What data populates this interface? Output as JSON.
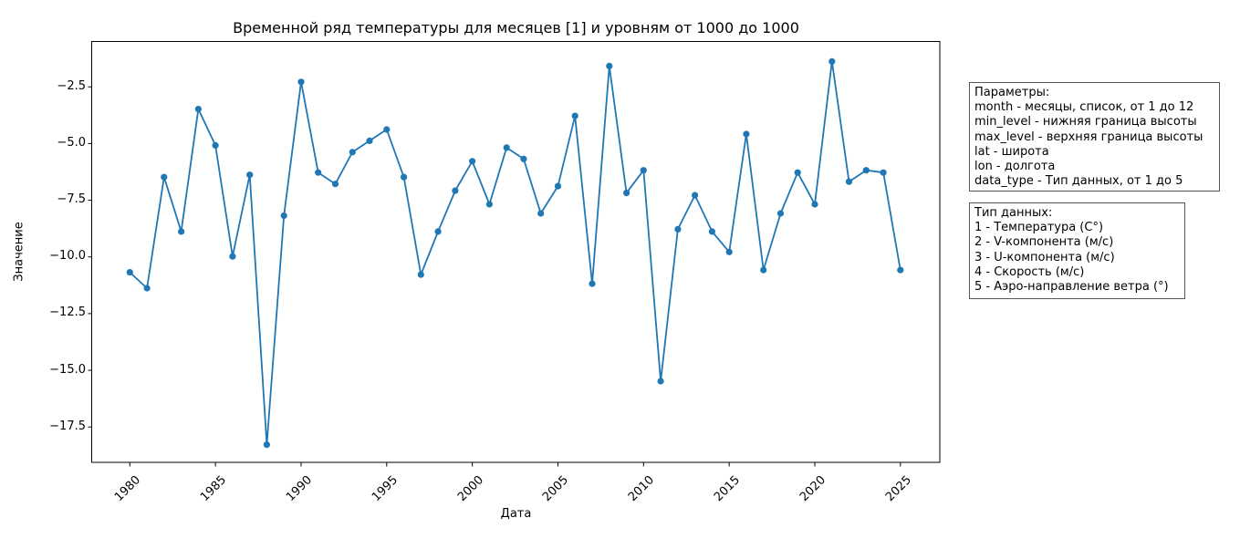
{
  "chart_data": {
    "type": "line",
    "title": "Временной ряд температуры для месяцев [1] и уровням от 1000 до 1000",
    "xlabel": "Дата",
    "ylabel": "Значение",
    "x": [
      1980,
      1981,
      1982,
      1983,
      1984,
      1985,
      1986,
      1987,
      1988,
      1989,
      1990,
      1991,
      1992,
      1993,
      1994,
      1995,
      1996,
      1997,
      1998,
      1999,
      2000,
      2001,
      2002,
      2003,
      2004,
      2005,
      2006,
      2007,
      2008,
      2009,
      2010,
      2011,
      2012,
      2013,
      2014,
      2015,
      2016,
      2017,
      2018,
      2019,
      2020,
      2021,
      2022,
      2023,
      2024,
      2025
    ],
    "series": [
      {
        "name": "температура",
        "color": "#1f77b4",
        "marker": "o",
        "values": [
          -10.7,
          -11.4,
          -6.5,
          -8.9,
          -3.5,
          -5.1,
          -10.0,
          -6.4,
          -18.3,
          -8.2,
          -2.3,
          -6.3,
          -6.8,
          -5.4,
          -4.9,
          -4.4,
          -6.5,
          -10.8,
          -8.9,
          -7.1,
          -5.8,
          -7.7,
          -5.2,
          -5.7,
          -8.1,
          -6.9,
          -3.8,
          -11.2,
          -1.6,
          -7.2,
          -6.2,
          -15.5,
          -8.8,
          -7.3,
          -8.9,
          -9.8,
          -4.6,
          -10.6,
          -8.1,
          -6.3,
          -7.7,
          -1.4,
          -6.7,
          -6.2,
          -6.3,
          -10.6
        ]
      }
    ],
    "xlim": [
      1977.8,
      2027.3
    ],
    "ylim": [
      -19.08,
      -0.54
    ],
    "x_ticks": {
      "values": [
        1980,
        1985,
        1990,
        1995,
        2000,
        2005,
        2010,
        2015,
        2020,
        2025
      ],
      "labels": [
        "1980",
        "1985",
        "1990",
        "1995",
        "2000",
        "2005",
        "2010",
        "2015",
        "2020",
        "2025"
      ]
    },
    "y_ticks": {
      "values": [
        -2.5,
        -5.0,
        -7.5,
        -10.0,
        -12.5,
        -15.0,
        -17.5
      ],
      "labels": [
        "−2.5",
        "−5.0",
        "−7.5",
        "−10.0",
        "−12.5",
        "−15.0",
        "−17.5"
      ]
    },
    "grid": false,
    "legend": "none",
    "x_tick_rotation": 45,
    "spine_color": "#000000",
    "background": "#ffffff"
  },
  "boxes": {
    "params": {
      "lines": [
        "Параметры:",
        "month - месяцы, список, от 1 до 12",
        "min_level - нижняя граница высоты",
        "max_level - верхняя граница высоты",
        "lat - широта",
        "lon - долгота",
        "data_type - Тип данных, от 1 до 5"
      ]
    },
    "data_types": {
      "lines": [
        "Тип данных:",
        "1 - Температура (C°)",
        "2 - V-компонента (м/с)",
        "3 - U-компонента (м/с)",
        "4 - Скорость (м/с)",
        "5 - Аэро-направление ветра (°)"
      ]
    }
  }
}
